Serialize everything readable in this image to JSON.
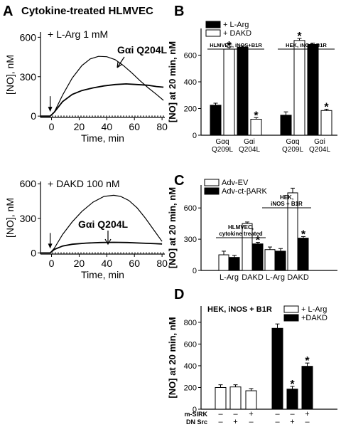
{
  "figure": {
    "panel_labels": {
      "A": "A",
      "B": "B",
      "C": "C",
      "D": "D"
    },
    "panelA_title": "Cytokine-treated HLMVEC"
  },
  "chart_data": [
    {
      "id": "A1",
      "type": "line",
      "annotation": "+ L-Arg 1 mM",
      "curve_label": "Gαi Q204L",
      "xlabel": "Time, min",
      "ylabel": "[NO], nM",
      "xticks": [
        0,
        20,
        40,
        60,
        80
      ],
      "yticks": [
        0,
        300,
        600
      ],
      "xlim": [
        -8,
        82
      ],
      "ylim": [
        -10,
        640
      ],
      "series": [
        {
          "x": [
            -8,
            -1,
            2,
            8,
            15,
            22,
            28,
            34,
            40,
            46,
            52,
            58,
            64,
            70,
            76,
            81
          ],
          "y": [
            0,
            0,
            30,
            160,
            290,
            385,
            435,
            455,
            452,
            430,
            385,
            330,
            270,
            215,
            165,
            120
          ]
        },
        {
          "x": [
            -8,
            -1,
            2,
            8,
            15,
            22,
            30,
            38,
            46,
            54,
            62,
            70,
            76,
            81
          ],
          "y": [
            0,
            0,
            30,
            110,
            165,
            195,
            215,
            230,
            240,
            245,
            240,
            235,
            225,
            220
          ]
        }
      ],
      "baseline": 0,
      "stimulus_time": -1
    },
    {
      "id": "A2",
      "type": "line",
      "annotation": "+ DAKD 100 nM",
      "curve_label": "Gαi Q204L",
      "xlabel": "Time, min",
      "ylabel": "[NO], nM",
      "xticks": [
        0,
        20,
        40,
        60,
        80
      ],
      "yticks": [
        0,
        300,
        600
      ],
      "xlim": [
        -8,
        82
      ],
      "ylim": [
        -10,
        620
      ],
      "series": [
        {
          "x": [
            -8,
            -1,
            2,
            8,
            15,
            22,
            30,
            38,
            45,
            50,
            56,
            62,
            68,
            74,
            80
          ],
          "y": [
            0,
            0,
            40,
            160,
            270,
            360,
            440,
            490,
            500,
            490,
            455,
            390,
            300,
            200,
            100
          ]
        },
        {
          "x": [
            -8,
            -1,
            2,
            8,
            15,
            25,
            35,
            45,
            55,
            65,
            75,
            80
          ],
          "y": [
            0,
            0,
            30,
            60,
            75,
            85,
            90,
            92,
            90,
            85,
            80,
            78
          ]
        }
      ],
      "baseline": 0,
      "stimulus_time": -1
    },
    {
      "id": "B",
      "type": "bar",
      "ylabel": "[NO] at 20 min, nM",
      "yticks": [
        0,
        200,
        400,
        600
      ],
      "ylim": [
        0,
        800
      ],
      "legend": [
        "+ L-Arg",
        "+ DAKD"
      ],
      "groups": [
        {
          "label": "HLMVEC, iNOS+B1R",
          "bars": [
            {
              "value": 225,
              "err": 15,
              "fill": "black"
            },
            {
              "value": 645,
              "err": 12,
              "fill": "white",
              "star": true
            },
            {
              "value": 660,
              "err": 10,
              "fill": "black"
            },
            {
              "value": 120,
              "err": 12,
              "fill": "white",
              "star": true
            }
          ]
        },
        {
          "label": "HEK, iNOS+B1R",
          "bars": [
            {
              "value": 150,
              "err": 25,
              "fill": "black"
            },
            {
              "value": 710,
              "err": 15,
              "fill": "white",
              "star": true
            },
            {
              "value": 680,
              "err": 10,
              "fill": "black"
            },
            {
              "value": 185,
              "err": 10,
              "fill": "white",
              "star": true
            }
          ]
        }
      ],
      "categories": [
        [
          "Gαq",
          "Q209L"
        ],
        [
          "Gαi",
          "Q204L"
        ],
        [
          "Gαq",
          "Q209L"
        ],
        [
          "Gαi",
          "Q204L"
        ]
      ]
    },
    {
      "id": "C",
      "type": "bar",
      "ylabel": "[NO] at 20 min, nM",
      "yticks": [
        0,
        300,
        600
      ],
      "ylim": [
        0,
        820
      ],
      "legend": [
        "Adv-EV",
        "Adv-ct-βARK"
      ],
      "groups": [
        {
          "label": [
            "HLMVEC,",
            "cytokine treated"
          ],
          "bars": [
            {
              "value": 150,
              "err": 35,
              "fill": "white"
            },
            {
              "value": 125,
              "err": 20,
              "fill": "black"
            },
            {
              "value": 450,
              "err": 15,
              "fill": "white"
            },
            {
              "value": 255,
              "err": 15,
              "fill": "black",
              "star": true
            }
          ]
        },
        {
          "label": [
            "HEK,",
            "iNOS + B1R"
          ],
          "bars": [
            {
              "value": 200,
              "err": 25,
              "fill": "white"
            },
            {
              "value": 185,
              "err": 25,
              "fill": "black"
            },
            {
              "value": 745,
              "err": 45,
              "fill": "white"
            },
            {
              "value": 310,
              "err": 15,
              "fill": "black",
              "star": true
            }
          ]
        }
      ],
      "categories": [
        "L-Arg",
        "DAKD",
        "L-Arg",
        "DAKD"
      ]
    },
    {
      "id": "D",
      "type": "bar",
      "title": "HEK, iNOS + B1R",
      "ylabel": "[NO] at 20 min, nM",
      "yticks": [
        0,
        200,
        400,
        600,
        800
      ],
      "ylim": [
        0,
        950
      ],
      "legend": [
        "+ L-Arg",
        "+DAKD"
      ],
      "bars": [
        {
          "value": 200,
          "err": 25,
          "fill": "white"
        },
        {
          "value": 205,
          "err": 20,
          "fill": "white"
        },
        {
          "value": 170,
          "err": 20,
          "fill": "white"
        },
        {
          "value": 745,
          "err": 40,
          "fill": "black"
        },
        {
          "value": 185,
          "err": 25,
          "fill": "black",
          "star": true
        },
        {
          "value": 395,
          "err": 30,
          "fill": "black",
          "star": true
        }
      ],
      "condition_rows": [
        {
          "label": "m-SIRK",
          "marks": [
            "–",
            "–",
            "+",
            "–",
            "–",
            "+"
          ]
        },
        {
          "label": "DN Src",
          "marks": [
            "–",
            "+",
            "–",
            "–",
            "+",
            "–"
          ]
        }
      ]
    }
  ]
}
